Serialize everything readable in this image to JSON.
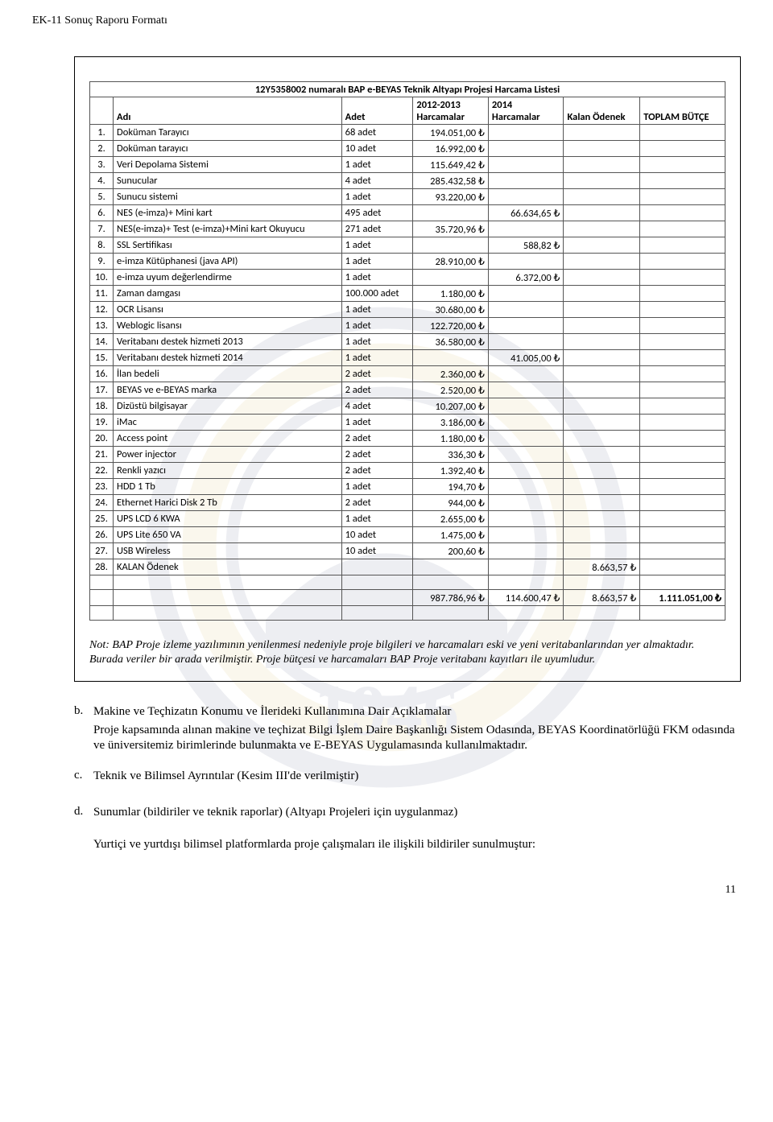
{
  "header": "EK-11 Sonuç Raporu Formatı",
  "table": {
    "title": "12Y5358002 numaralı BAP e-BEYAS Teknik Altyapı Projesi Harcama Listesi",
    "headers": {
      "idx": "",
      "adi": "Adı",
      "adet": "Adet",
      "h1213": "2012-2013 Harcamalar",
      "h2014": "2014 Harcamalar",
      "kalan": "Kalan Ödenek",
      "toplam": "TOPLAM BÜTÇE"
    },
    "rows": [
      {
        "n": "1.",
        "adi": "Doküman Tarayıcı",
        "adet": "68 adet",
        "c1": "194.051,00 ₺",
        "c2": "",
        "c3": "",
        "c4": ""
      },
      {
        "n": "2.",
        "adi": "Doküman tarayıcı",
        "adet": "10 adet",
        "c1": "16.992,00 ₺",
        "c2": "",
        "c3": "",
        "c4": ""
      },
      {
        "n": "3.",
        "adi": "Veri Depolama Sistemi",
        "adet": "1 adet",
        "c1": "115.649,42 ₺",
        "c2": "",
        "c3": "",
        "c4": ""
      },
      {
        "n": "4.",
        "adi": "Sunucular",
        "adet": "4 adet",
        "c1": "285.432,58 ₺",
        "c2": "",
        "c3": "",
        "c4": ""
      },
      {
        "n": "5.",
        "adi": "Sunucu sistemi",
        "adet": "1 adet",
        "c1": "93.220,00 ₺",
        "c2": "",
        "c3": "",
        "c4": ""
      },
      {
        "n": "6.",
        "adi": "NES (e-imza)+ Mini kart",
        "adet": "495 adet",
        "c1": "",
        "c2": "66.634,65 ₺",
        "c3": "",
        "c4": ""
      },
      {
        "n": "7.",
        "adi": "NES(e-imza)+ Test (e-imza)+Mini kart Okuyucu",
        "adet": "271 adet",
        "c1": "35.720,96 ₺",
        "c2": "",
        "c3": "",
        "c4": ""
      },
      {
        "n": "8.",
        "adi": "SSL Sertifikası",
        "adet": "1 adet",
        "c1": "",
        "c2": "588,82 ₺",
        "c3": "",
        "c4": ""
      },
      {
        "n": "9.",
        "adi": "e-imza Kütüphanesi (java API)",
        "adet": "1 adet",
        "c1": "28.910,00 ₺",
        "c2": "",
        "c3": "",
        "c4": ""
      },
      {
        "n": "10.",
        "adi": "e-imza uyum değerlendirme",
        "adet": "1 adet",
        "c1": "",
        "c2": "6.372,00 ₺",
        "c3": "",
        "c4": ""
      },
      {
        "n": "11.",
        "adi": "Zaman damgası",
        "adet": "100.000 adet",
        "c1": "1.180,00 ₺",
        "c2": "",
        "c3": "",
        "c4": ""
      },
      {
        "n": "12.",
        "adi": "OCR Lisansı",
        "adet": "1 adet",
        "c1": "30.680,00 ₺",
        "c2": "",
        "c3": "",
        "c4": ""
      },
      {
        "n": "13.",
        "adi": "Weblogic lisansı",
        "adet": "1 adet",
        "c1": "122.720,00 ₺",
        "c2": "",
        "c3": "",
        "c4": ""
      },
      {
        "n": "14.",
        "adi": "Veritabanı destek hizmeti 2013",
        "adet": "1 adet",
        "c1": "36.580,00 ₺",
        "c2": "",
        "c3": "",
        "c4": ""
      },
      {
        "n": "15.",
        "adi": "Veritabanı destek hizmeti 2014",
        "adet": "1 adet",
        "c1": "",
        "c2": "41.005,00 ₺",
        "c3": "",
        "c4": ""
      },
      {
        "n": "16.",
        "adi": "İlan bedeli",
        "adet": "2 adet",
        "c1": "2.360,00 ₺",
        "c2": "",
        "c3": "",
        "c4": ""
      },
      {
        "n": "17.",
        "adi": "BEYAS ve e-BEYAS marka",
        "adet": "2 adet",
        "c1": "2.520,00 ₺",
        "c2": "",
        "c3": "",
        "c4": ""
      },
      {
        "n": "18.",
        "adi": "Dizüstü bilgisayar",
        "adet": "4 adet",
        "c1": "10.207,00 ₺",
        "c2": "",
        "c3": "",
        "c4": ""
      },
      {
        "n": "19.",
        "adi": "iMac",
        "adet": "1 adet",
        "c1": "3.186,00 ₺",
        "c2": "",
        "c3": "",
        "c4": ""
      },
      {
        "n": "20.",
        "adi": "Access point",
        "adet": "2 adet",
        "c1": "1.180,00 ₺",
        "c2": "",
        "c3": "",
        "c4": ""
      },
      {
        "n": "21.",
        "adi": "Power injector",
        "adet": "2 adet",
        "c1": "336,30 ₺",
        "c2": "",
        "c3": "",
        "c4": ""
      },
      {
        "n": "22.",
        "adi": "Renkli yazıcı",
        "adet": "2 adet",
        "c1": "1.392,40 ₺",
        "c2": "",
        "c3": "",
        "c4": ""
      },
      {
        "n": "23.",
        "adi": "HDD 1 Tb",
        "adet": "1 adet",
        "c1": "194,70 ₺",
        "c2": "",
        "c3": "",
        "c4": ""
      },
      {
        "n": "24.",
        "adi": "Ethernet Harici Disk 2 Tb",
        "adet": "2 adet",
        "c1": "944,00 ₺",
        "c2": "",
        "c3": "",
        "c4": ""
      },
      {
        "n": "25.",
        "adi": "UPS LCD 6 KWA",
        "adet": "1 adet",
        "c1": "2.655,00 ₺",
        "c2": "",
        "c3": "",
        "c4": ""
      },
      {
        "n": "26.",
        "adi": "UPS Lite 650 VA",
        "adet": "10 adet",
        "c1": "1.475,00 ₺",
        "c2": "",
        "c3": "",
        "c4": ""
      },
      {
        "n": "27.",
        "adi": "USB Wireless",
        "adet": "10 adet",
        "c1": "200,60 ₺",
        "c2": "",
        "c3": "",
        "c4": ""
      },
      {
        "n": "28.",
        "adi": "KALAN Ödenek",
        "adet": "",
        "c1": "",
        "c2": "",
        "c3": "8.663,57 ₺",
        "c4": ""
      }
    ],
    "totals": {
      "c1": "987.786,96 ₺",
      "c2": "114.600,47 ₺",
      "c3": "8.663,57 ₺",
      "c4": "1.111.051,00 ₺"
    }
  },
  "note": "Not: BAP Proje izleme yazılımının yenilenmesi nedeniyle proje bilgileri ve harcamaları eski ve yeni veritabanlarından yer almaktadır. Burada veriler bir arada verilmiştir. Proje bütçesi ve harcamaları BAP Proje veritabanı kayıtları ile uyumludur.",
  "sections": {
    "b": {
      "letter": "b.",
      "title": "Makine ve Teçhizatın Konumu ve İlerideki Kullanımına Dair Açıklamalar",
      "body": "Proje kapsamında alınan makine ve teçhizat Bilgi İşlem Daire Başkanlığı Sistem Odasında, BEYAS Koordinatörlüğü FKM odasında ve üniversitemiz birimlerinde bulunmakta ve E-BEYAS Uygulamasında kullanılmaktadır."
    },
    "c": {
      "letter": "c.",
      "title": "Teknik ve Bilimsel Ayrıntılar (Kesim III'de verilmiştir)"
    },
    "d": {
      "letter": "d.",
      "title": "Sunumlar (bildiriler ve teknik raporlar)  (Altyapı Projeleri için uygulanmaz)",
      "body": "Yurtiçi ve yurtdışı bilimsel platformlarda proje çalışmaları ile ilişkili bildiriler sunulmuştur:"
    }
  },
  "pageNumber": "11",
  "watermark": {
    "year": "1946",
    "outer": "#2b3a6b",
    "gold": "#c9a227"
  }
}
